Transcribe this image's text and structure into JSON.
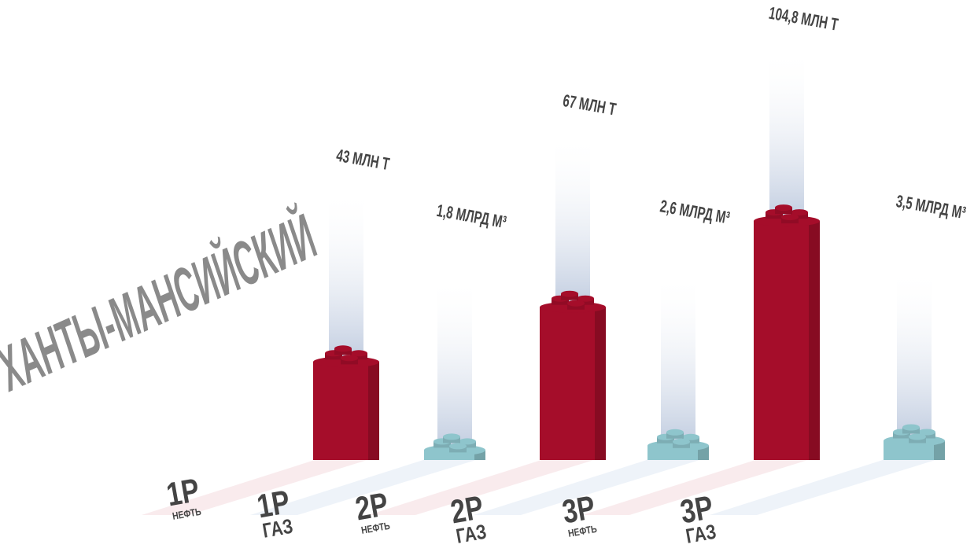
{
  "chart_data": {
    "type": "bar",
    "title": "ХАНТЫ-МАНСИЙСКИЙ",
    "categories": [
      "1P",
      "1P",
      "2P",
      "2P",
      "3P",
      "3P"
    ],
    "sublabels": [
      "НЕФТЬ",
      "ГАЗ",
      "НЕФТЬ",
      "ГАЗ",
      "НЕФТЬ",
      "ГАЗ"
    ],
    "values": [
      43,
      1.8,
      67,
      2.6,
      104.8,
      3.5
    ],
    "value_labels": [
      "43 МЛН Т",
      "1,8 МЛРД М³",
      "67 МЛН Т",
      "2,6 МЛРД М³",
      "104,8 МЛН Т",
      "3,5 МЛРД М³"
    ],
    "colors": [
      "#a50d2a",
      "#8ec5cc",
      "#a50d2a",
      "#8ec5cc",
      "#a50d2a",
      "#8ec5cc"
    ]
  }
}
